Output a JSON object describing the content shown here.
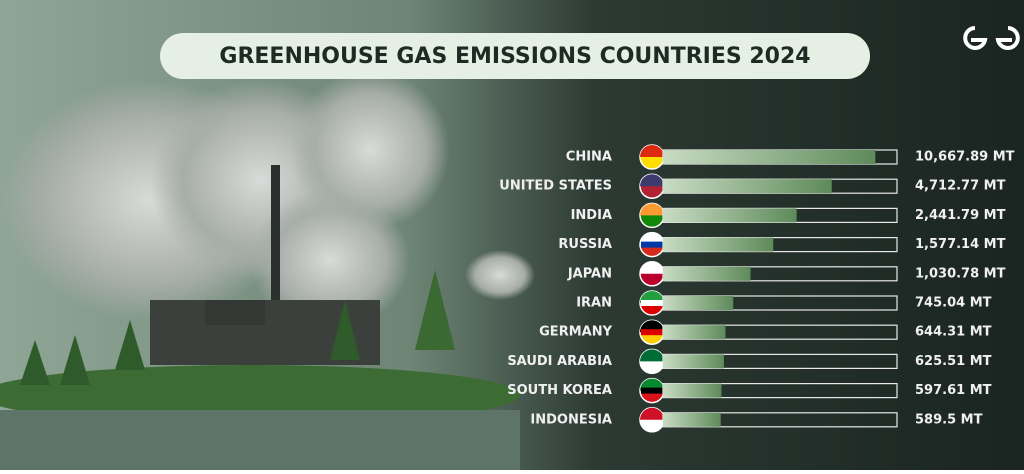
{
  "chart_data": {
    "type": "bar",
    "orientation": "horizontal",
    "title": "GREENHOUSE GAS EMISSIONS COUNTRIES 2024",
    "categories": [
      "CHINA",
      "UNITED STATES",
      "INDIA",
      "RUSSIA",
      "JAPAN",
      "IRAN",
      "GERMANY",
      "SAUDI ARABIA",
      "SOUTH KOREA",
      "INDONESIA"
    ],
    "values": [
      10667.89,
      4712.77,
      2441.79,
      1577.14,
      1030.78,
      745.04,
      644.31,
      625.51,
      597.61,
      589.5
    ],
    "value_labels": [
      "10,667.89 MT",
      "4,712.77 MT",
      "2,441.79 MT",
      "1,577.14 MT",
      "1,030.78 MT",
      "745.04 MT",
      "644.31 MT",
      "625.51 MT",
      "597.61 MT",
      "589.5 MT"
    ],
    "color": "#6f9a6a",
    "log_scale": true,
    "xlim": [
      200,
      16000
    ]
  }
}
